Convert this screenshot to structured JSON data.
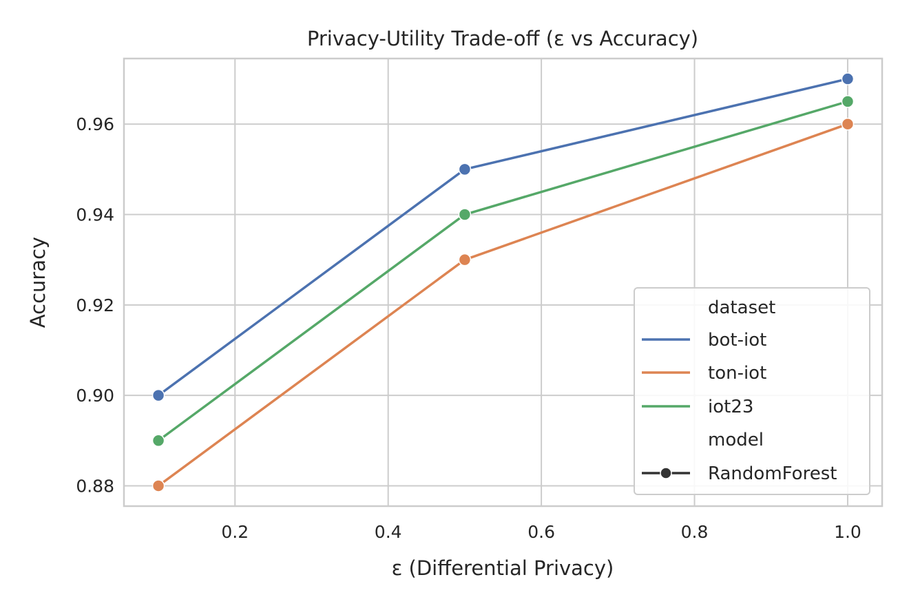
{
  "chart_data": {
    "type": "line",
    "title": "Privacy-Utility Trade-off (ε vs Accuracy)",
    "xlabel": "ε (Differential Privacy)",
    "ylabel": "Accuracy",
    "xlim": [
      0.055,
      1.045
    ],
    "ylim": [
      0.8755,
      0.9745
    ],
    "x_ticks": [
      0.2,
      0.4,
      0.6,
      0.8,
      1.0
    ],
    "x_tick_labels": [
      "0.2",
      "0.4",
      "0.6",
      "0.8",
      "1.0"
    ],
    "y_ticks": [
      0.88,
      0.9,
      0.92,
      0.94,
      0.96
    ],
    "y_tick_labels": [
      "0.88",
      "0.90",
      "0.92",
      "0.94",
      "0.96"
    ],
    "grid": true,
    "x": [
      0.1,
      0.5,
      1.0
    ],
    "series": [
      {
        "name": "bot-iot",
        "color": "#4c72b0",
        "values": [
          0.9,
          0.95,
          0.97
        ]
      },
      {
        "name": "ton-iot",
        "color": "#dd8452",
        "values": [
          0.88,
          0.93,
          0.96
        ]
      },
      {
        "name": "iot23",
        "color": "#55a868",
        "values": [
          0.89,
          0.94,
          0.965
        ]
      }
    ],
    "legend": {
      "placement": "lower-right",
      "hue_title": "dataset",
      "style_title": "model",
      "style_entries": [
        {
          "name": "RandomForest",
          "color": "#333333",
          "marker": "circle"
        }
      ]
    }
  }
}
